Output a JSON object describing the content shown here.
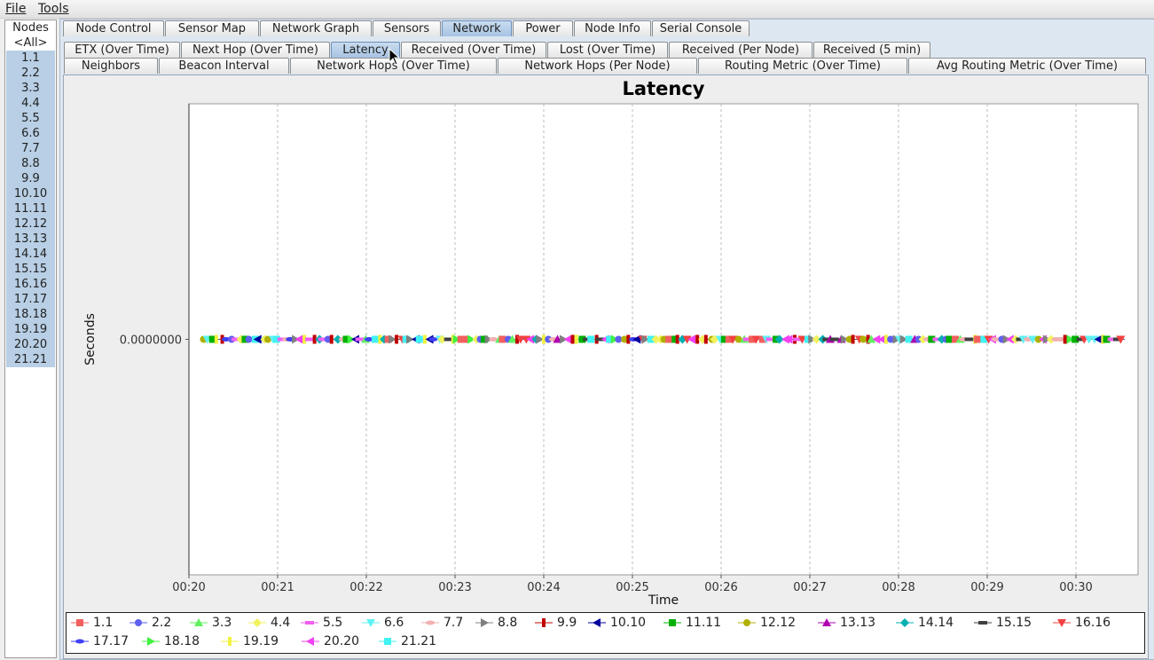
{
  "menu": {
    "file": "File",
    "tools": "Tools"
  },
  "nodes": {
    "header": "Nodes",
    "items": [
      "<All>",
      "1.1",
      "2.2",
      "3.3",
      "4.4",
      "5.5",
      "6.6",
      "7.7",
      "8.8",
      "9.9",
      "10.10",
      "11.11",
      "12.12",
      "13.13",
      "14.14",
      "15.15",
      "16.16",
      "17.17",
      "18.18",
      "19.19",
      "20.20",
      "21.21"
    ]
  },
  "main_tabs": [
    "Node Control",
    "Sensor Map",
    "Network Graph",
    "Sensors",
    "Network",
    "Power",
    "Node Info",
    "Serial Console"
  ],
  "main_tab_selected": "Network",
  "sub_tabs_row1": [
    "ETX (Over Time)",
    "Next Hop (Over Time)",
    "Latency",
    "Received (Over Time)",
    "Lost (Over Time)",
    "Received (Per Node)",
    "Received (5 min)"
  ],
  "sub_tabs_row2": [
    "Neighbors",
    "Beacon Interval",
    "Network Hops (Over Time)",
    "Network Hops (Per Node)",
    "Routing Metric (Over Time)",
    "Avg Routing Metric (Over Time)"
  ],
  "sub_tab_selected": "Latency",
  "chart_data": {
    "type": "scatter",
    "title": "Latency",
    "xlabel": "Time",
    "ylabel": "Seconds",
    "y_tick_labels": [
      "0.0000000"
    ],
    "x_tick_labels": [
      "00:20",
      "00:21",
      "00:22",
      "00:23",
      "00:24",
      "00:25",
      "00:26",
      "00:27",
      "00:28",
      "00:29",
      "00:30"
    ],
    "x_range_minutes": [
      20.0,
      30.7
    ],
    "grid": true,
    "legend_position": "bottom",
    "series": [
      {
        "name": "1.1",
        "color": "#f25f5f",
        "marker": "square"
      },
      {
        "name": "2.2",
        "color": "#5f5ff2",
        "marker": "circle"
      },
      {
        "name": "3.3",
        "color": "#5ff25f",
        "marker": "triangle-up"
      },
      {
        "name": "4.4",
        "color": "#f2f25f",
        "marker": "diamond"
      },
      {
        "name": "5.5",
        "color": "#f25ff2",
        "marker": "rect-h"
      },
      {
        "name": "6.6",
        "color": "#5ff2f2",
        "marker": "triangle-down"
      },
      {
        "name": "7.7",
        "color": "#f2b0b0",
        "marker": "ellipse"
      },
      {
        "name": "8.8",
        "color": "#808080",
        "marker": "triangle-right"
      },
      {
        "name": "9.9",
        "color": "#c00000",
        "marker": "rect-v"
      },
      {
        "name": "10.10",
        "color": "#0000a0",
        "marker": "triangle-left"
      },
      {
        "name": "11.11",
        "color": "#00b000",
        "marker": "square"
      },
      {
        "name": "12.12",
        "color": "#b0b000",
        "marker": "circle"
      },
      {
        "name": "13.13",
        "color": "#b000b0",
        "marker": "triangle-up"
      },
      {
        "name": "14.14",
        "color": "#00b0b0",
        "marker": "diamond"
      },
      {
        "name": "15.15",
        "color": "#404040",
        "marker": "rect-h"
      },
      {
        "name": "16.16",
        "color": "#f24040",
        "marker": "triangle-down"
      },
      {
        "name": "17.17",
        "color": "#4040f2",
        "marker": "ellipse"
      },
      {
        "name": "18.18",
        "color": "#40f240",
        "marker": "triangle-right"
      },
      {
        "name": "19.19",
        "color": "#f2f240",
        "marker": "rect-v"
      },
      {
        "name": "20.20",
        "color": "#f240f2",
        "marker": "triangle-left"
      },
      {
        "name": "21.21",
        "color": "#40f2f2",
        "marker": "square"
      }
    ],
    "y_value_all_points": 0.0
  }
}
